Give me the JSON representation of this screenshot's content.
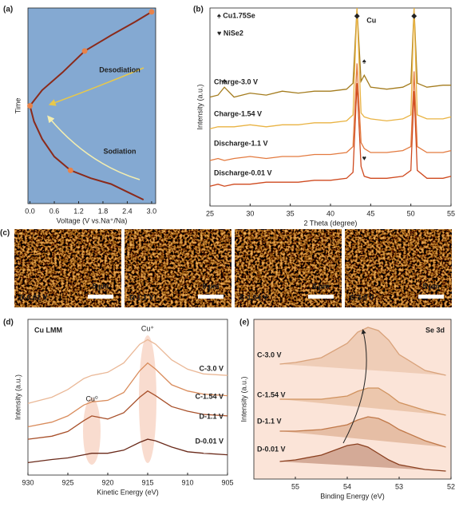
{
  "chart_data": [
    {
      "type": "line",
      "panel": "(a)",
      "xlabel": "Voltage (V vs.Na⁺/Na)",
      "ylabel": "Time",
      "background": "#84a9d2",
      "xlim": [
        -0.05,
        3.1
      ],
      "ylim": [
        0,
        100
      ],
      "xticks": [
        {
          "value": 0,
          "label": "0.0"
        },
        0.6,
        1.2,
        1.8,
        2.4,
        {
          "value": 3,
          "label": "3.0"
        }
      ],
      "series": [
        {
          "name": "Sodiation",
          "color": "#8b2a1a",
          "label_color": "#f4eeb0",
          "x": [
            2.8,
            2.4,
            2.0,
            1.5,
            1.0,
            0.6,
            0.3,
            0.1,
            0
          ],
          "values": [
            2,
            6,
            10,
            13,
            17,
            24,
            33,
            42,
            50
          ]
        },
        {
          "name": "Desodiation",
          "color": "#8b2a1a",
          "label_color": "#e8b23a",
          "x": [
            0,
            0.3,
            0.8,
            1.35,
            2.0,
            2.6,
            3.0
          ],
          "values": [
            50,
            58,
            67,
            78,
            86,
            93,
            98
          ]
        }
      ],
      "markers": {
        "color": "#e8834a",
        "x": [
          0,
          1.0,
          1.35,
          3.0
        ],
        "values": [
          50,
          17,
          78,
          98
        ]
      }
    },
    {
      "type": "line",
      "panel": "(b)",
      "xlabel": "2 Theta (degree)",
      "ylabel": "Intensity (a.u.)",
      "background": "#ffffff",
      "xlim": [
        25,
        55
      ],
      "ylim": [
        0,
        100
      ],
      "xticks": [
        25,
        30,
        35,
        40,
        45,
        50,
        55
      ],
      "x": [
        25,
        26,
        26.8,
        28,
        30,
        32,
        34,
        36,
        38,
        40,
        42,
        42.8,
        43.3,
        43.8,
        44.2,
        45,
        47,
        49,
        50,
        50.4,
        50.8,
        52,
        54,
        55
      ],
      "series": [
        {
          "name": "Charge-3.0 V",
          "color": "#a47c1e",
          "label_color": "#5ab4d8",
          "values": [
            55,
            56,
            60,
            55,
            57,
            56,
            58,
            57,
            58,
            58,
            59,
            62,
            100,
            63,
            66,
            60,
            59,
            60,
            62,
            100,
            62,
            60,
            61,
            61
          ]
        },
        {
          "name": "Charge-1.54 V",
          "color": "#e9b343",
          "label_color": "#3a88c0",
          "values": [
            39,
            40,
            40,
            40,
            41,
            40,
            41,
            41,
            42,
            42,
            43,
            46,
            100,
            47,
            45,
            44,
            43,
            44,
            46,
            100,
            46,
            44,
            44,
            45
          ]
        },
        {
          "name": "Discharge-1.1 V",
          "color": "#e37a3f",
          "label_color": "#2f6fb0",
          "values": [
            23,
            24,
            23,
            24,
            25,
            24,
            25,
            25,
            26,
            26,
            27,
            30,
            72,
            32,
            29,
            27,
            27,
            28,
            30,
            68,
            30,
            27,
            27,
            28
          ]
        },
        {
          "name": "Discharge-0.01 V",
          "color": "#cf4a1f",
          "label_color": "#2a2a6a",
          "values": [
            10,
            11,
            10,
            11,
            11,
            12,
            12,
            12,
            13,
            13,
            14,
            17,
            62,
            20,
            15,
            14,
            14,
            15,
            18,
            58,
            18,
            14,
            14,
            15
          ]
        }
      ],
      "legend": [
        "♠ Cu1.75Se",
        "♥ NiSe2"
      ],
      "cu_label": "Cu",
      "peak_marks": [
        {
          "symbol": "◆",
          "x": 43.3,
          "y": 96
        },
        {
          "symbol": "◆",
          "x": 50.4,
          "y": 96
        },
        {
          "symbol": "♠",
          "x": 26.8,
          "y": 63
        },
        {
          "symbol": "♠",
          "x": 44.2,
          "y": 73
        },
        {
          "symbol": "♥",
          "x": 44.2,
          "y": 24
        }
      ]
    },
    {
      "type": "line",
      "panel": "(d)",
      "xlabel": "Kinetic Energy (eV)",
      "ylabel": "Intensity (a.u.)",
      "background": "#ffffff",
      "title": "Cu LMM",
      "xlim": [
        930,
        905
      ],
      "ylim": [
        0,
        100
      ],
      "xticks": [
        930,
        925,
        920,
        915,
        910,
        905
      ],
      "annotations": [
        "Cu⁰",
        "Cu⁺"
      ],
      "x": [
        930,
        927,
        925,
        923,
        922,
        920,
        918,
        916,
        915,
        914,
        912,
        910,
        908,
        905
      ],
      "series": [
        {
          "name": "C-3.0 V",
          "color": "#eab897",
          "label_color": "#c8906a",
          "values": [
            46,
            50,
            55,
            62,
            64,
            66,
            72,
            84,
            87,
            84,
            74,
            68,
            65,
            64
          ]
        },
        {
          "name": "C-1.54 V",
          "color": "#d98c5c",
          "label_color": "#c07848",
          "values": [
            31,
            34,
            38,
            45,
            47,
            48,
            53,
            67,
            72,
            68,
            58,
            54,
            52,
            51
          ]
        },
        {
          "name": "D-1.1 V",
          "color": "#a8502a",
          "label_color": "#8b3a1a",
          "values": [
            23,
            25,
            28,
            35,
            38,
            36,
            40,
            50,
            54,
            51,
            44,
            41,
            39,
            38
          ]
        },
        {
          "name": "D-0.01 V",
          "color": "#6a2a1a",
          "label_color": "#5a2012",
          "values": [
            8,
            10,
            11,
            13,
            14,
            14,
            16,
            21,
            23,
            22,
            18,
            15,
            14,
            13
          ]
        }
      ]
    },
    {
      "type": "line",
      "panel": "(e)",
      "xlabel": "Binding Energy (eV)",
      "ylabel": "Intensity (a.u.)",
      "background": "#fbe4d8",
      "title": "Se 3d",
      "xlim": [
        55.8,
        52
      ],
      "ylim": [
        0,
        100
      ],
      "xticks": [
        55,
        54,
        53,
        52
      ],
      "x": [
        55.3,
        55,
        54.5,
        54,
        53.8,
        53.6,
        53.4,
        53.2,
        53,
        52.5,
        52.1
      ],
      "series": [
        {
          "name": "C-3.0 V",
          "color": "#d9a27a",
          "label_color": "#000000",
          "values": [
            72,
            73,
            76,
            85,
            92,
            95,
            93,
            87,
            78,
            68,
            65
          ]
        },
        {
          "name": "C-1.54 V",
          "color": "#d0925e",
          "label_color": "#000000",
          "values": [
            50,
            50,
            50,
            52,
            55,
            57,
            57,
            53,
            48,
            43,
            40
          ]
        },
        {
          "name": "D-1.1 V",
          "color": "#c07848",
          "label_color": "#000000",
          "values": [
            30,
            30,
            31,
            34,
            37,
            39,
            38,
            35,
            31,
            24,
            20
          ]
        },
        {
          "name": "D-0.01 V",
          "color": "#8b4020",
          "label_color": "#000000",
          "values": [
            11,
            12,
            15,
            21,
            22,
            20,
            16,
            12,
            9,
            6,
            5
          ]
        }
      ]
    }
  ],
  "micrographs": {
    "panel": "(c)",
    "images": [
      {
        "label": "D-0.01 V",
        "scale": "5 μm"
      },
      {
        "label": "D-1.1 V",
        "scale": "5 μm"
      },
      {
        "label": "C-1.54 V",
        "scale": "5 μm"
      },
      {
        "label": "C-3.0 V",
        "scale": "5 μm"
      }
    ]
  }
}
